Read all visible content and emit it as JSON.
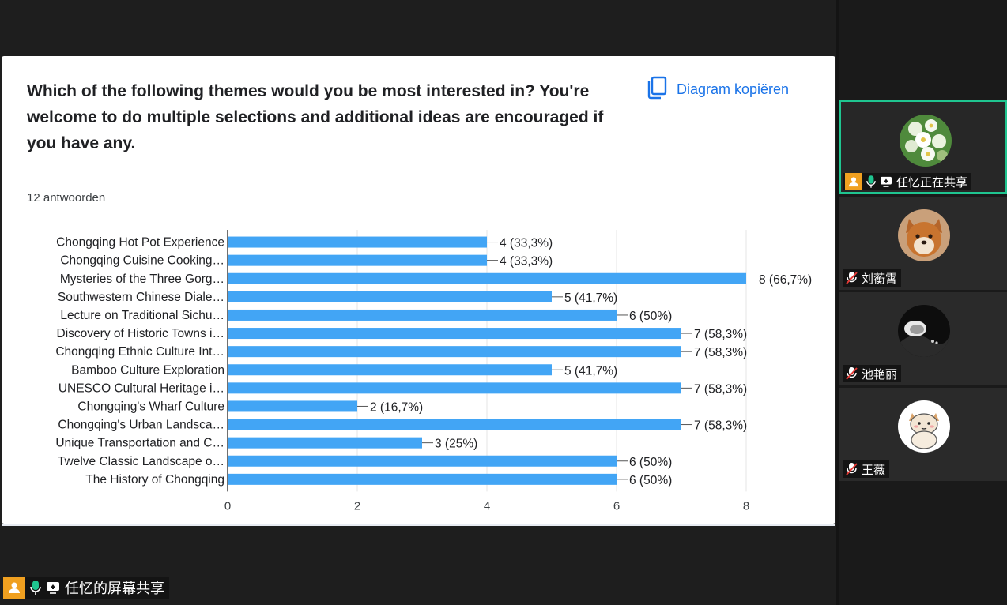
{
  "question": {
    "title": "Which of the following themes would you be most interested in? You're welcome to do multiple selections and additional ideas are encouraged if you have any.",
    "copy_label": "Diagram kopiëren",
    "responses": "12 antwoorden"
  },
  "colors": {
    "bar": "#42a5f5",
    "active_border": "#1fc590",
    "badge": "#f0a020",
    "link": "#1a73e8"
  },
  "chart_data": {
    "type": "bar",
    "orientation": "horizontal",
    "categories": [
      "Chongqing Hot Pot Experience",
      "Chongqing Cuisine Cooking…",
      "Mysteries of the Three Gorg…",
      "Southwestern Chinese Diale…",
      "Lecture on Traditional Sichu…",
      "Discovery of Historic Towns i…",
      "Chongqing Ethnic Culture Int…",
      "Bamboo Culture Exploration",
      "UNESCO Cultural Heritage i…",
      "Chongqing's Wharf Culture",
      "Chongqing's Urban Landsca…",
      "Unique Transportation and C…",
      "Twelve Classic Landscape o…",
      "The History of Chongqing"
    ],
    "values": [
      4,
      4,
      8,
      5,
      6,
      7,
      7,
      5,
      7,
      2,
      7,
      3,
      6,
      6
    ],
    "data_labels": [
      "4 (33,3%)",
      "4 (33,3%)",
      "8 (66,7%)",
      "5 (41,7%)",
      "6 (50%)",
      "7 (58,3%)",
      "7 (58,3%)",
      "5 (41,7%)",
      "7 (58,3%)",
      "2 (16,7%)",
      "7 (58,3%)",
      "3 (25%)",
      "6 (50%)",
      "6 (50%)"
    ],
    "xticks": [
      "0",
      "2",
      "4",
      "6",
      "8"
    ],
    "xlim": [
      0,
      8
    ],
    "grid": true
  },
  "participants": [
    {
      "name": "任忆正在共享",
      "active": true,
      "sharing": true,
      "muted": false,
      "avatar": "flower-avatar"
    },
    {
      "name": "刘蘅霄",
      "active": false,
      "sharing": false,
      "muted": true,
      "avatar": "dog-avatar"
    },
    {
      "name": "池艳丽",
      "active": false,
      "sharing": false,
      "muted": true,
      "avatar": "dark-photo-avatar"
    },
    {
      "name": "王薇",
      "active": false,
      "sharing": false,
      "muted": true,
      "avatar": "cat-avatar"
    }
  ],
  "screen_share_label": "任忆的屏幕共享"
}
